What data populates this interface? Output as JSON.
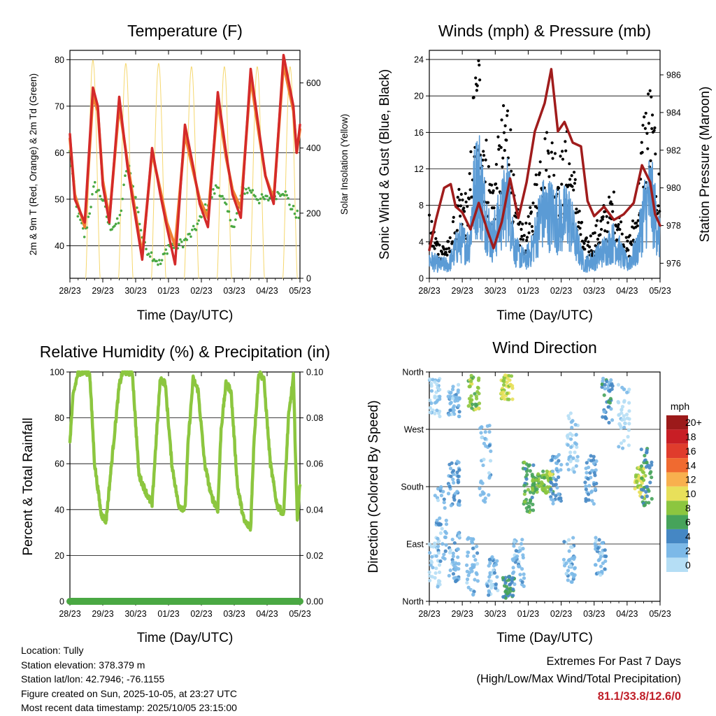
{
  "chart_data": [
    {
      "id": "temperature",
      "type": "line",
      "title": "Temperature (F)",
      "xlabel": "Time (Day/UTC)",
      "ylabel": "2m & 9m T (Red, Orange) & 2m Td (Green)",
      "ylabel_right": "Solar Insolation (Yellow)",
      "x_ticks": [
        "28/23",
        "29/23",
        "30/23",
        "01/23",
        "02/23",
        "03/23",
        "04/23",
        "05/23"
      ],
      "xlim": [
        0,
        7
      ],
      "ylim": [
        33,
        82
      ],
      "y_ticks": [
        40,
        50,
        60,
        70,
        80
      ],
      "ylim_right": [
        0,
        700
      ],
      "y_ticks_right": [
        0,
        200,
        400,
        600
      ],
      "grid": "horizontal",
      "series": [
        {
          "name": "2m T",
          "color": "#d42a2a",
          "x": [
            0,
            0.15,
            0.45,
            0.7,
            0.85,
            1.0,
            1.2,
            1.5,
            1.75,
            1.95,
            2.2,
            2.5,
            2.75,
            2.95,
            3.2,
            3.5,
            3.75,
            3.95,
            4.2,
            4.5,
            4.75,
            4.95,
            5.2,
            5.5,
            5.75,
            5.95,
            6.2,
            6.5,
            6.8,
            6.9,
            7.0
          ],
          "y": [
            64,
            50,
            45,
            74,
            70,
            53,
            45,
            72,
            57,
            48,
            37,
            61,
            51,
            44,
            36,
            66,
            57,
            49,
            44,
            73,
            60,
            51,
            46,
            78,
            65,
            55,
            49,
            81,
            70,
            60,
            66
          ]
        },
        {
          "name": "9m T",
          "color": "#f08030",
          "x": [
            0,
            0.15,
            0.45,
            0.7,
            0.85,
            1.0,
            1.2,
            1.5,
            1.75,
            1.95,
            2.2,
            2.5,
            2.75,
            2.95,
            3.2,
            3.5,
            3.75,
            3.95,
            4.2,
            4.5,
            4.75,
            4.95,
            5.2,
            5.5,
            5.75,
            5.95,
            6.2,
            6.5,
            6.8,
            6.9,
            7.0
          ],
          "y": [
            63,
            51,
            44,
            72,
            69,
            54,
            46,
            70,
            58,
            49,
            38,
            60,
            52,
            45,
            40,
            64,
            56,
            50,
            46,
            71,
            59,
            52,
            48,
            76,
            64,
            55,
            50,
            79,
            69,
            60,
            65
          ]
        },
        {
          "name": "2m Td",
          "color": "#4aa843",
          "x": [
            0,
            0.2,
            0.45,
            0.75,
            1.0,
            1.2,
            1.5,
            1.75,
            2.0,
            2.25,
            2.5,
            2.75,
            3.0,
            3.25,
            3.5,
            3.75,
            4.0,
            4.25,
            4.5,
            4.75,
            5.0,
            5.25,
            5.5,
            5.75,
            6.0,
            6.25,
            6.5,
            6.75,
            7.0
          ],
          "y": [
            60,
            48,
            42,
            53,
            50,
            44,
            45,
            58,
            50,
            40,
            38,
            36,
            40,
            40,
            41,
            43,
            46,
            50,
            53,
            48,
            44,
            52,
            52,
            50,
            50,
            51,
            52,
            48,
            46
          ]
        },
        {
          "name": "Solar Insolation",
          "axis": "right",
          "color": "#f5d76e",
          "daily_peaks": [
            {
              "day_center": 0.7,
              "peak": 670
            },
            {
              "day_center": 1.7,
              "peak": 660
            },
            {
              "day_center": 2.7,
              "peak": 660
            },
            {
              "day_center": 3.7,
              "peak": 650
            },
            {
              "day_center": 4.7,
              "peak": 650
            },
            {
              "day_center": 5.7,
              "peak": 650
            },
            {
              "day_center": 6.7,
              "peak": 650
            }
          ]
        }
      ]
    },
    {
      "id": "winds",
      "type": "scatter",
      "title": "Winds (mph) & Pressure (mb)",
      "xlabel": "Time (Day/UTC)",
      "ylabel": "Sonic Wind & Gust (Blue, Black)",
      "ylabel_right": "Station Pressure (Maroon)",
      "x_ticks": [
        "28/23",
        "29/23",
        "30/23",
        "01/23",
        "02/23",
        "03/23",
        "04/23",
        "05/23"
      ],
      "xlim": [
        0,
        7
      ],
      "ylim": [
        0,
        25
      ],
      "y_ticks": [
        0,
        4,
        8,
        12,
        16,
        20,
        24
      ],
      "ylim_right": [
        975.2,
        987.3
      ],
      "y_ticks_right": [
        976,
        978,
        980,
        982,
        984,
        986
      ],
      "grid": "horizontal",
      "series": [
        {
          "name": "Gust",
          "color": "#000000",
          "x": [
            0,
            0.3,
            0.6,
            0.9,
            1.2,
            1.35,
            1.5,
            1.7,
            1.9,
            2.2,
            2.4,
            2.6,
            2.9,
            3.1,
            3.4,
            3.7,
            4.0,
            4.2,
            4.45,
            4.7,
            5.0,
            5.3,
            5.6,
            6.0,
            6.3,
            6.5,
            6.7,
            6.9,
            7.0
          ],
          "y": [
            5,
            3,
            3,
            7,
            7,
            16,
            19,
            12,
            8,
            13,
            16,
            6,
            4,
            6,
            12,
            12,
            10,
            12,
            8,
            3,
            4,
            6,
            7,
            3,
            6,
            14,
            16,
            10,
            8
          ]
        },
        {
          "name": "Sonic Wind",
          "color": "#5b9bd5",
          "x": [
            0,
            0.3,
            0.6,
            0.9,
            1.2,
            1.35,
            1.5,
            1.7,
            1.9,
            2.2,
            2.4,
            2.6,
            2.9,
            3.1,
            3.4,
            3.7,
            4.0,
            4.2,
            4.45,
            4.7,
            5.0,
            5.3,
            5.6,
            6.0,
            6.3,
            6.5,
            6.7,
            6.9,
            7.0
          ],
          "y": [
            2,
            1.5,
            1.5,
            4,
            3.5,
            9,
            11,
            7,
            4,
            7,
            9,
            3,
            2,
            3,
            7,
            7,
            6,
            7,
            4,
            1.5,
            2,
            3,
            4,
            1.5,
            3,
            7,
            9,
            6,
            4
          ]
        },
        {
          "name": "Station Pressure",
          "axis": "right",
          "color": "#a01c1c",
          "x": [
            0,
            0.2,
            0.45,
            0.65,
            0.8,
            1.0,
            1.25,
            1.5,
            1.75,
            1.95,
            2.2,
            2.45,
            2.7,
            2.95,
            3.2,
            3.5,
            3.7,
            3.9,
            4.1,
            4.35,
            4.6,
            4.8,
            5.0,
            5.3,
            5.6,
            5.9,
            6.2,
            6.45,
            6.7,
            6.85,
            7.0
          ],
          "y": [
            976.7,
            978.3,
            980.0,
            980.2,
            979.0,
            978.7,
            977.8,
            979.2,
            977.8,
            976.8,
            978.2,
            980.5,
            978.4,
            980.3,
            983.0,
            984.5,
            986.3,
            983.0,
            983.5,
            982.4,
            982.2,
            979.3,
            978.5,
            979.0,
            978.3,
            978.6,
            979.2,
            981.2,
            980.3,
            978.6,
            978.0
          ]
        }
      ]
    },
    {
      "id": "humidity",
      "type": "line",
      "title": "Relative Humidity (%) & Precipitation (in)",
      "xlabel": "Time (Day/UTC)",
      "ylabel": "Percent & Total Rainfall",
      "x_ticks": [
        "28/23",
        "29/23",
        "30/23",
        "01/23",
        "02/23",
        "03/23",
        "04/23",
        "05/23"
      ],
      "xlim": [
        0,
        7
      ],
      "ylim": [
        0,
        100
      ],
      "y_ticks": [
        0,
        20,
        40,
        60,
        80,
        100
      ],
      "ylim_right": [
        0,
        0.1
      ],
      "y_ticks_right": [
        "0.00",
        "0.02",
        "0.04",
        "0.06",
        "0.08",
        "0.10"
      ],
      "grid": "horizontal",
      "series": [
        {
          "name": "Relative Humidity",
          "color": "#8cc63f",
          "x": [
            0,
            0.1,
            0.25,
            0.4,
            0.6,
            0.75,
            0.95,
            1.1,
            1.3,
            1.5,
            1.6,
            1.75,
            1.9,
            2.1,
            2.3,
            2.5,
            2.6,
            2.75,
            2.9,
            3.1,
            3.3,
            3.5,
            3.6,
            3.75,
            3.9,
            4.1,
            4.3,
            4.5,
            4.6,
            4.75,
            4.9,
            5.1,
            5.3,
            5.5,
            5.6,
            5.75,
            5.9,
            6.1,
            6.3,
            6.5,
            6.65,
            6.8,
            6.92,
            7.0
          ],
          "y": [
            70,
            90,
            100,
            100,
            100,
            60,
            38,
            35,
            65,
            94,
            100,
            100,
            100,
            55,
            48,
            42,
            65,
            97,
            95,
            60,
            42,
            40,
            70,
            97,
            92,
            60,
            46,
            40,
            75,
            95,
            92,
            50,
            35,
            32,
            70,
            100,
            97,
            60,
            42,
            38,
            80,
            98,
            35,
            52
          ]
        },
        {
          "name": "Precipitation",
          "axis": "right",
          "color": "#4aa843",
          "x": [
            0,
            7
          ],
          "y": [
            0,
            0
          ]
        }
      ]
    },
    {
      "id": "wind_direction",
      "type": "scatter",
      "title": "Wind Direction",
      "xlabel": "Time (Day/UTC)",
      "ylabel": "Direction (Colored By Speed)",
      "x_ticks": [
        "28/23",
        "29/23",
        "30/23",
        "01/23",
        "02/23",
        "03/23",
        "04/23",
        "05/23"
      ],
      "xlim": [
        0,
        7
      ],
      "ylim": [
        0,
        360
      ],
      "y_tick_values": [
        0,
        90,
        180,
        270,
        360
      ],
      "y_tick_labels": [
        "North",
        "East",
        "South",
        "West",
        "North"
      ],
      "grid": "horizontal",
      "colorbar": {
        "title": "mph",
        "levels": [
          "0",
          "2",
          "4",
          "6",
          "8",
          "10",
          "12",
          "14",
          "16",
          "18",
          "20+"
        ],
        "colors": [
          "#b5def5",
          "#7cb9e8",
          "#4587c4",
          "#46a35a",
          "#8cc63f",
          "#e8e05a",
          "#f8b04e",
          "#f06a30",
          "#e03c2c",
          "#c81e25",
          "#9c1a1a"
        ]
      },
      "clusters": [
        {
          "x": 0.15,
          "dir_min": 20,
          "dir_max": 100,
          "speed": 1
        },
        {
          "x": 0.15,
          "dir_min": 290,
          "dir_max": 350,
          "speed": 2
        },
        {
          "x": 0.35,
          "dir_min": 60,
          "dir_max": 180,
          "speed": 3
        },
        {
          "x": 0.75,
          "dir_min": 30,
          "dir_max": 110,
          "speed": 3
        },
        {
          "x": 0.75,
          "dir_min": 150,
          "dir_max": 220,
          "speed": 4
        },
        {
          "x": 0.75,
          "dir_min": 290,
          "dir_max": 340,
          "speed": 3
        },
        {
          "x": 1.3,
          "dir_min": 10,
          "dir_max": 100,
          "speed": 3
        },
        {
          "x": 1.35,
          "dir_min": 300,
          "dir_max": 355,
          "speed": 9
        },
        {
          "x": 1.7,
          "dir_min": 150,
          "dir_max": 280,
          "speed": 3
        },
        {
          "x": 1.9,
          "dir_min": 5,
          "dir_max": 70,
          "speed": 3
        },
        {
          "x": 2.35,
          "dir_min": 315,
          "dir_max": 355,
          "speed": 10
        },
        {
          "x": 2.4,
          "dir_min": 5,
          "dir_max": 40,
          "speed": 6
        },
        {
          "x": 2.7,
          "dir_min": 20,
          "dir_max": 100,
          "speed": 3
        },
        {
          "x": 3.0,
          "dir_min": 140,
          "dir_max": 220,
          "speed": 7
        },
        {
          "x": 3.3,
          "dir_min": 170,
          "dir_max": 200,
          "speed": 8
        },
        {
          "x": 3.6,
          "dir_min": 170,
          "dir_max": 205,
          "speed": 9
        },
        {
          "x": 3.85,
          "dir_min": 150,
          "dir_max": 230,
          "speed": 4
        },
        {
          "x": 4.25,
          "dir_min": 30,
          "dir_max": 100,
          "speed": 3
        },
        {
          "x": 4.35,
          "dir_min": 200,
          "dir_max": 300,
          "speed": 2
        },
        {
          "x": 4.9,
          "dir_min": 150,
          "dir_max": 230,
          "speed": 4
        },
        {
          "x": 5.2,
          "dir_min": 40,
          "dir_max": 100,
          "speed": 3
        },
        {
          "x": 5.4,
          "dir_min": 280,
          "dir_max": 350,
          "speed": 5
        },
        {
          "x": 5.9,
          "dir_min": 240,
          "dir_max": 340,
          "speed": 1
        },
        {
          "x": 6.4,
          "dir_min": 160,
          "dir_max": 210,
          "speed": 10
        },
        {
          "x": 6.6,
          "dir_min": 150,
          "dir_max": 240,
          "speed": 6
        }
      ]
    }
  ],
  "info": {
    "location": "Location: Tully",
    "elevation": "Station elevation: 378.379 m",
    "latlon": "Station lat/lon: 42.7946; -76.1155",
    "created": "Figure created on Sun, 2025-10-05, at 23:27 UTC",
    "recent": "Most recent data timestamp: 2025/10/05 23:15:00"
  },
  "extremes": {
    "title": "Extremes For Past 7 Days",
    "subtitle": "(High/Low/Max Wind/Total Precipitation)",
    "values": "81.1/33.8/12.6/0",
    "value_color": "#c0202a"
  }
}
